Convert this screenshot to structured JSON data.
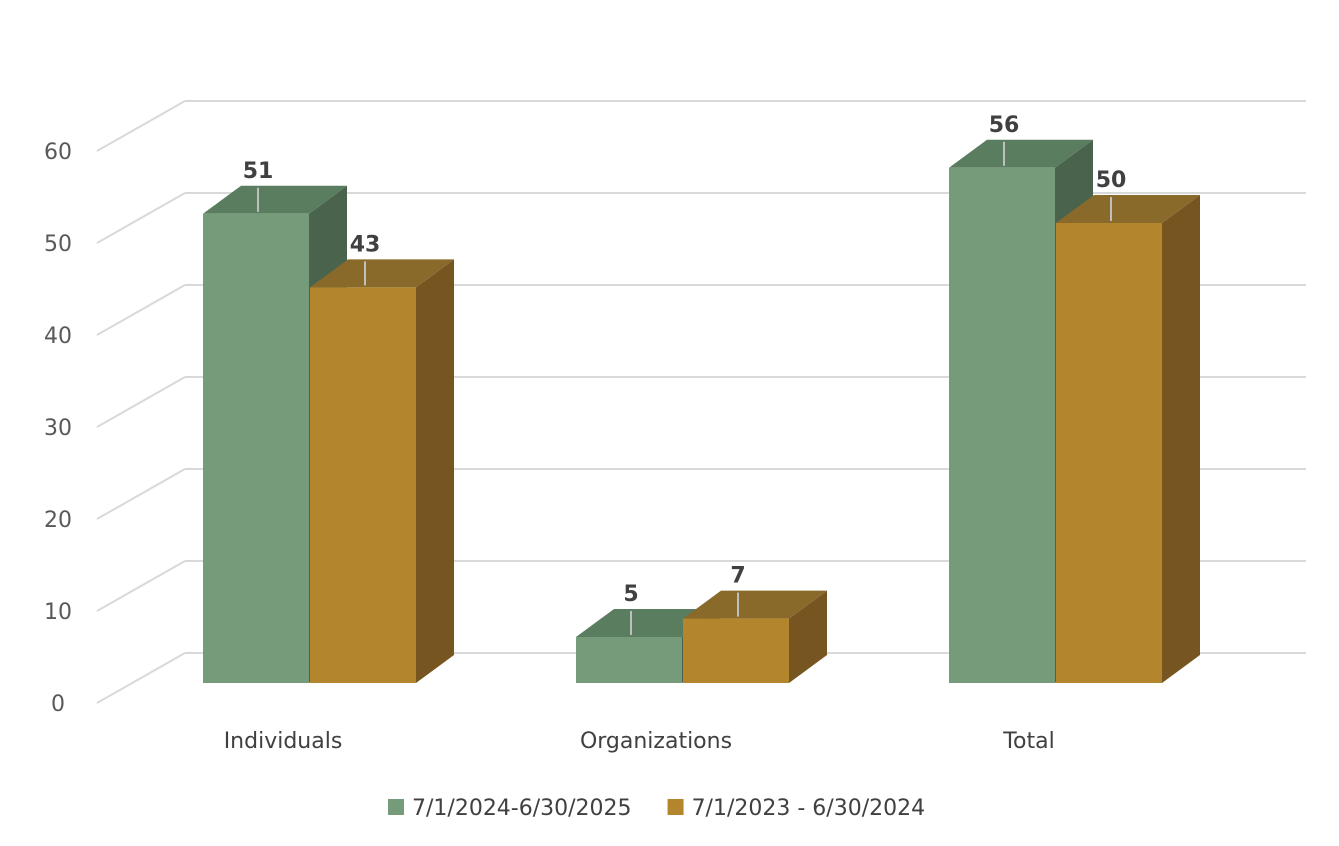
{
  "chart_data": {
    "type": "bar",
    "categories": [
      "Individuals",
      "Organizations",
      "Total"
    ],
    "series": [
      {
        "name": "7/1/2024-6/30/2025",
        "values": [
          51,
          5,
          56
        ],
        "color": "#759b7b",
        "top_color": "#5a7c5f",
        "side_color": "#4a634d"
      },
      {
        "name": "7/1/2023 - 6/30/2024",
        "values": [
          43,
          7,
          50
        ],
        "color": "#b3862e",
        "top_color": "#8a6a2a",
        "side_color": "#765520"
      }
    ],
    "ylim": [
      0,
      60
    ],
    "yticks": [
      0,
      10,
      20,
      30,
      40,
      50,
      60
    ],
    "legend": "bottom",
    "gridlines": true,
    "three_d": true
  }
}
